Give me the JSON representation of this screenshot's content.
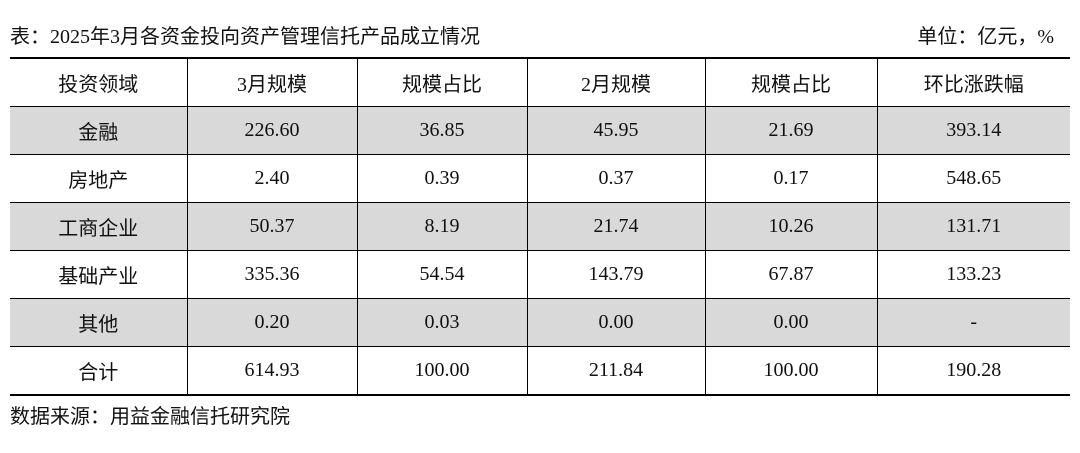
{
  "header": {
    "title": "表：2025年3月各资金投向资产管理信托产品成立情况",
    "unit": "单位：亿元，%"
  },
  "table": {
    "columns": [
      "投资领域",
      "3月规模",
      "规模占比",
      "2月规模",
      "规模占比",
      "环比涨跌幅"
    ],
    "rows": [
      [
        "金融",
        "226.60",
        "36.85",
        "45.95",
        "21.69",
        "393.14"
      ],
      [
        "房地产",
        "2.40",
        "0.39",
        "0.37",
        "0.17",
        "548.65"
      ],
      [
        "工商企业",
        "50.37",
        "8.19",
        "21.74",
        "10.26",
        "131.71"
      ],
      [
        "基础产业",
        "335.36",
        "54.54",
        "143.79",
        "67.87",
        "133.23"
      ],
      [
        "其他",
        "0.20",
        "0.03",
        "0.00",
        "0.00",
        "-"
      ],
      [
        "合计",
        "614.93",
        "100.00",
        "211.84",
        "100.00",
        "190.28"
      ]
    ],
    "shaded_rows": [
      0,
      2,
      4
    ]
  },
  "footer": {
    "source": "数据来源：用益金融信托研究院"
  }
}
